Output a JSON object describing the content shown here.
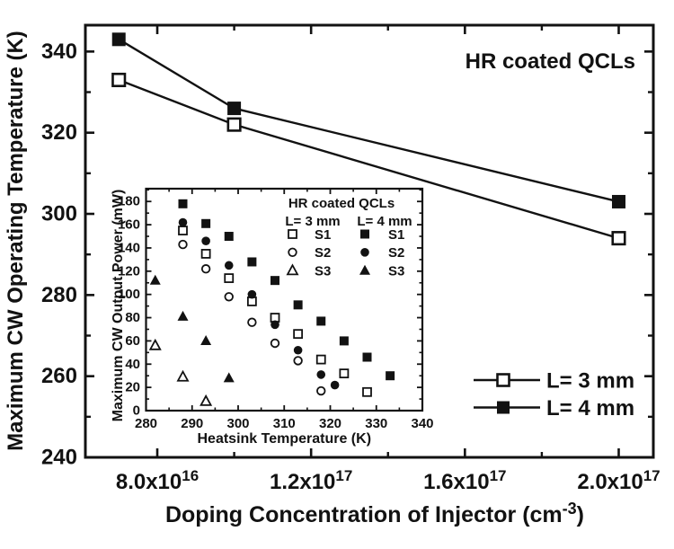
{
  "colors": {
    "ink": "#121212",
    "background": "#ffffff"
  },
  "chart_data": [
    {
      "id": "main",
      "type": "line",
      "annotation": "HR coated QCLs",
      "xlabel_base": "Doping Concentration of Injector (cm",
      "xlabel_sup": "-3",
      "xlabel_end": ")",
      "ylabel": "Maximum CW Operating Temperature (K)",
      "xlim": [
        6.13e+16,
        2.09e+17
      ],
      "ylim": [
        240,
        346.5
      ],
      "x_major_ticks": [
        {
          "value": 8e+16,
          "base": "8.0x10",
          "sup": "16"
        },
        {
          "value": 1.2e+17,
          "base": "1.2x10",
          "sup": "17"
        },
        {
          "value": 1.6e+17,
          "base": "1.6x10",
          "sup": "17"
        },
        {
          "value": 2e+17,
          "base": "2.0x10",
          "sup": "17"
        }
      ],
      "x_minor_ticks": [
        1e+17,
        1.4e+17,
        1.8e+17
      ],
      "y_major_ticks": [
        240,
        260,
        280,
        300,
        320,
        340
      ],
      "y_minor_ticks": [
        250,
        270,
        290,
        310,
        330
      ],
      "grid": "off",
      "legend_position": "lower right",
      "series": [
        {
          "name": "L= 3 mm",
          "marker": "square-open",
          "x": [
            7e+16,
            1e+17,
            2e+17
          ],
          "y": [
            333,
            322,
            294
          ]
        },
        {
          "name": "L= 4 mm",
          "marker": "square-filled",
          "x": [
            7e+16,
            1e+17,
            2e+17
          ],
          "y": [
            343,
            326,
            303
          ]
        }
      ],
      "legend": [
        {
          "label": "L= 3 mm",
          "marker": "square-open"
        },
        {
          "label": "L= 4 mm",
          "marker": "square-filled"
        }
      ]
    },
    {
      "id": "inset",
      "type": "scatter",
      "legend_title": "HR coated QCLs",
      "legend_col1": "L= 3 mm",
      "legend_col2": "L= 4 mm",
      "xlabel": "Heatsink Temperature (K)",
      "ylabel": "Maximum CW Output Power (mW)",
      "xlim": [
        280,
        340
      ],
      "ylim": [
        0,
        191
      ],
      "x_major_ticks": [
        280,
        290,
        300,
        310,
        320,
        330,
        340
      ],
      "x_minor_ticks": [
        285,
        295,
        305,
        315,
        325,
        335
      ],
      "y_major_ticks": [
        0,
        20,
        40,
        60,
        80,
        100,
        120,
        140,
        160,
        180
      ],
      "y_minor_ticks": [
        10,
        30,
        50,
        70,
        90,
        110,
        130,
        150,
        170,
        190
      ],
      "grid": "off",
      "legend_position": "upper right",
      "series": [
        {
          "name": "S1",
          "group": "L= 3 mm",
          "marker": "square-open",
          "points": [
            [
              288,
              155
            ],
            [
              293,
              135
            ],
            [
              298,
              114
            ],
            [
              303,
              94
            ],
            [
              308,
              80
            ],
            [
              313,
              66
            ],
            [
              318,
              44
            ],
            [
              323,
              32
            ],
            [
              328,
              16
            ]
          ]
        },
        {
          "name": "S1",
          "group": "L= 4 mm",
          "marker": "square-filled",
          "points": [
            [
              288,
              178
            ],
            [
              293,
              161
            ],
            [
              298,
              150
            ],
            [
              303,
              128
            ],
            [
              308,
              112
            ],
            [
              313,
              91
            ],
            [
              318,
              77
            ],
            [
              323,
              60
            ],
            [
              328,
              46
            ],
            [
              333,
              30
            ]
          ]
        },
        {
          "name": "S2",
          "group": "L= 3 mm",
          "marker": "circle-open",
          "points": [
            [
              288,
              143
            ],
            [
              293,
              122
            ],
            [
              298,
              98
            ],
            [
              303,
              76
            ],
            [
              308,
              58
            ],
            [
              313,
              43
            ],
            [
              318,
              17
            ]
          ]
        },
        {
          "name": "S2",
          "group": "L= 4 mm",
          "marker": "circle-filled",
          "points": [
            [
              288,
              162
            ],
            [
              293,
              146
            ],
            [
              298,
              125
            ],
            [
              303,
              100
            ],
            [
              308,
              74
            ],
            [
              313,
              52
            ],
            [
              318,
              31
            ],
            [
              321,
              22
            ]
          ]
        },
        {
          "name": "S3",
          "group": "L= 3 mm",
          "marker": "triangle-open",
          "points": [
            [
              282,
              56
            ],
            [
              288,
              29
            ],
            [
              293,
              8
            ]
          ]
        },
        {
          "name": "S3",
          "group": "L= 4 mm",
          "marker": "triangle-filled",
          "points": [
            [
              282,
              112
            ],
            [
              288,
              81
            ],
            [
              293,
              60
            ],
            [
              298,
              28
            ]
          ]
        }
      ]
    }
  ]
}
